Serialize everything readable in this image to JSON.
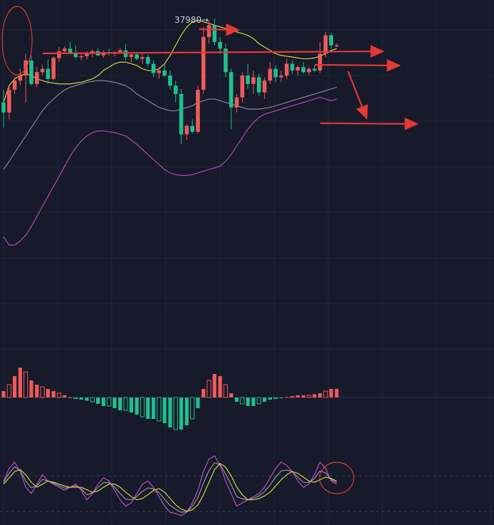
{
  "chart_data": {
    "type": "candlestick",
    "annotations": {
      "price_label": "37980",
      "price_label_arrow": "→"
    },
    "candles": [
      {
        "o": 40,
        "h": 55,
        "l": 10,
        "c": 28
      },
      {
        "o": 28,
        "h": 60,
        "l": 20,
        "c": 55
      },
      {
        "o": 55,
        "h": 70,
        "l": 50,
        "c": 66
      },
      {
        "o": 66,
        "h": 80,
        "l": 60,
        "c": 72
      },
      {
        "o": 72,
        "h": 98,
        "l": 40,
        "c": 90
      },
      {
        "o": 90,
        "h": 96,
        "l": 60,
        "c": 62
      },
      {
        "o": 62,
        "h": 82,
        "l": 58,
        "c": 76
      },
      {
        "o": 76,
        "h": 85,
        "l": 72,
        "c": 80
      },
      {
        "o": 80,
        "h": 91,
        "l": 62,
        "c": 68
      },
      {
        "o": 68,
        "h": 95,
        "l": 66,
        "c": 93
      },
      {
        "o": 93,
        "h": 106,
        "l": 88,
        "c": 101
      },
      {
        "o": 101,
        "h": 107,
        "l": 98,
        "c": 104
      },
      {
        "o": 104,
        "h": 112,
        "l": 97,
        "c": 99
      },
      {
        "o": 99,
        "h": 108,
        "l": 92,
        "c": 94
      },
      {
        "o": 94,
        "h": 100,
        "l": 90,
        "c": 95
      },
      {
        "o": 95,
        "h": 101,
        "l": 91,
        "c": 98
      },
      {
        "o": 98,
        "h": 103,
        "l": 94,
        "c": 101
      },
      {
        "o": 101,
        "h": 104,
        "l": 95,
        "c": 96
      },
      {
        "o": 96,
        "h": 102,
        "l": 93,
        "c": 100
      },
      {
        "o": 100,
        "h": 104,
        "l": 96,
        "c": 98
      },
      {
        "o": 98,
        "h": 101,
        "l": 95,
        "c": 100
      },
      {
        "o": 100,
        "h": 105,
        "l": 98,
        "c": 102
      },
      {
        "o": 102,
        "h": 110,
        "l": 90,
        "c": 94
      },
      {
        "o": 94,
        "h": 99,
        "l": 88,
        "c": 97
      },
      {
        "o": 97,
        "h": 100,
        "l": 90,
        "c": 92
      },
      {
        "o": 92,
        "h": 98,
        "l": 86,
        "c": 94
      },
      {
        "o": 94,
        "h": 97,
        "l": 83,
        "c": 86
      },
      {
        "o": 86,
        "h": 90,
        "l": 70,
        "c": 75
      },
      {
        "o": 75,
        "h": 82,
        "l": 68,
        "c": 78
      },
      {
        "o": 78,
        "h": 86,
        "l": 70,
        "c": 72
      },
      {
        "o": 72,
        "h": 78,
        "l": 55,
        "c": 60
      },
      {
        "o": 60,
        "h": 66,
        "l": 40,
        "c": 50
      },
      {
        "o": 50,
        "h": 56,
        "l": -10,
        "c": 2
      },
      {
        "o": 2,
        "h": 14,
        "l": -5,
        "c": 12
      },
      {
        "o": 12,
        "h": 20,
        "l": 3,
        "c": 5
      },
      {
        "o": 5,
        "h": 60,
        "l": 3,
        "c": 55
      },
      {
        "o": 55,
        "h": 130,
        "l": 50,
        "c": 118
      },
      {
        "o": 118,
        "h": 138,
        "l": 110,
        "c": 132
      },
      {
        "o": 132,
        "h": 140,
        "l": 108,
        "c": 112
      },
      {
        "o": 112,
        "h": 118,
        "l": 98,
        "c": 104
      },
      {
        "o": 104,
        "h": 110,
        "l": 70,
        "c": 76
      },
      {
        "o": 76,
        "h": 80,
        "l": 8,
        "c": 34
      },
      {
        "o": 34,
        "h": 50,
        "l": 28,
        "c": 46
      },
      {
        "o": 46,
        "h": 76,
        "l": 40,
        "c": 72
      },
      {
        "o": 72,
        "h": 86,
        "l": 56,
        "c": 62
      },
      {
        "o": 62,
        "h": 78,
        "l": 50,
        "c": 70
      },
      {
        "o": 70,
        "h": 74,
        "l": 48,
        "c": 52
      },
      {
        "o": 52,
        "h": 70,
        "l": 44,
        "c": 66
      },
      {
        "o": 66,
        "h": 88,
        "l": 62,
        "c": 80
      },
      {
        "o": 80,
        "h": 84,
        "l": 64,
        "c": 70
      },
      {
        "o": 70,
        "h": 78,
        "l": 64,
        "c": 72
      },
      {
        "o": 72,
        "h": 92,
        "l": 68,
        "c": 86
      },
      {
        "o": 86,
        "h": 90,
        "l": 74,
        "c": 78
      },
      {
        "o": 78,
        "h": 84,
        "l": 72,
        "c": 82
      },
      {
        "o": 82,
        "h": 88,
        "l": 74,
        "c": 76
      },
      {
        "o": 76,
        "h": 82,
        "l": 72,
        "c": 80
      },
      {
        "o": 80,
        "h": 84,
        "l": 76,
        "c": 78
      },
      {
        "o": 78,
        "h": 112,
        "l": 75,
        "c": 98
      },
      {
        "o": 98,
        "h": 124,
        "l": 94,
        "c": 120
      },
      {
        "o": 120,
        "h": 123,
        "l": 104,
        "c": 108
      },
      {
        "o": 108,
        "h": 110,
        "l": 106,
        "c": 108
      }
    ],
    "macd_histogram": [
      3,
      6,
      10,
      14,
      12,
      8,
      6,
      5,
      4,
      3,
      2,
      1,
      0,
      -0.5,
      -1,
      -1.5,
      -2,
      -3,
      -4,
      -4,
      -5,
      -6,
      -6,
      -7,
      -8,
      -9,
      -10,
      -10,
      -11,
      -12,
      -14,
      -15,
      -15,
      -13,
      -10,
      -5,
      4,
      8,
      11,
      10,
      6,
      2,
      -2,
      -3,
      -4,
      -4,
      -3,
      -2,
      -1,
      -0.5,
      -0.3,
      0.2,
      0.5,
      1,
      1,
      1,
      1.5,
      2,
      3,
      4,
      4
    ],
    "bollinger": {
      "upper": [
        40,
        60,
        68,
        72,
        74,
        72,
        68,
        66,
        64,
        63,
        62,
        62,
        62,
        63,
        64,
        66,
        68,
        72,
        78,
        82,
        86,
        88,
        88,
        86,
        84,
        80,
        78,
        78,
        80,
        86,
        96,
        108,
        120,
        130,
        136,
        138,
        136,
        134,
        132,
        130,
        128,
        126,
        124,
        122,
        120,
        116,
        110,
        106,
        102,
        98,
        96,
        95,
        94,
        93,
        92,
        92,
        93,
        95,
        98,
        102,
        104
      ],
      "middle": [
        -40,
        -30,
        -20,
        -10,
        0,
        10,
        20,
        30,
        38,
        44,
        50,
        55,
        58,
        60,
        62,
        64,
        65,
        66,
        66,
        65,
        64,
        62,
        60,
        56,
        50,
        46,
        42,
        38,
        34,
        32,
        30,
        30,
        32,
        34,
        36,
        40,
        42,
        44,
        44,
        42,
        40,
        38,
        36,
        34,
        32,
        32,
        32,
        33,
        34,
        36,
        38,
        40,
        42,
        44,
        46,
        48,
        50,
        52,
        54,
        56,
        58
      ],
      "lower": [
        -120,
        -130,
        -130,
        -125,
        -118,
        -108,
        -96,
        -84,
        -72,
        -60,
        -48,
        -36,
        -24,
        -14,
        -6,
        0,
        4,
        6,
        6,
        5,
        4,
        2,
        0,
        -5,
        -10,
        -16,
        -22,
        -28,
        -34,
        -40,
        -44,
        -46,
        -47,
        -47,
        -46,
        -44,
        -42,
        -40,
        -38,
        -36,
        -30,
        -22,
        -12,
        -2,
        8,
        16,
        22,
        26,
        28,
        30,
        32,
        34,
        36,
        38,
        40,
        42,
        44,
        46,
        44,
        42,
        44
      ]
    },
    "stoch": {
      "k": [
        60,
        80,
        90,
        75,
        50,
        40,
        55,
        70,
        60,
        55,
        50,
        45,
        50,
        55,
        45,
        30,
        40,
        55,
        65,
        60,
        45,
        30,
        20,
        25,
        40,
        55,
        60,
        50,
        35,
        20,
        10,
        8,
        5,
        10,
        25,
        45,
        75,
        95,
        100,
        85,
        60,
        40,
        20,
        25,
        30,
        35,
        40,
        50,
        65,
        80,
        90,
        85,
        75,
        60,
        50,
        55,
        70,
        90,
        80,
        60,
        55
      ],
      "d": [
        55,
        65,
        75,
        78,
        70,
        58,
        50,
        55,
        60,
        58,
        55,
        52,
        50,
        50,
        50,
        46,
        42,
        44,
        50,
        55,
        55,
        50,
        42,
        35,
        30,
        32,
        38,
        45,
        48,
        42,
        32,
        22,
        15,
        12,
        14,
        22,
        38,
        58,
        78,
        88,
        82,
        68,
        50,
        38,
        30,
        30,
        32,
        36,
        42,
        52,
        62,
        70,
        75,
        72,
        66,
        60,
        58,
        62,
        66,
        64,
        60
      ]
    }
  },
  "colors": {
    "background": "#161a2a",
    "grid": "#232838",
    "bull": "#ef5a5a",
    "bear": "#1fbf8f",
    "boll_upper": "#e6e23a",
    "boll_middle": "#8d8fa3",
    "boll_lower": "#c94bb9",
    "stoch_k": "#d04fcf",
    "stoch_d": "#e6e23a",
    "stoch_j": "#9aa0b3",
    "arrow": "#e53935",
    "circle": "#d93a3a",
    "label_text": "#c9cde0"
  }
}
